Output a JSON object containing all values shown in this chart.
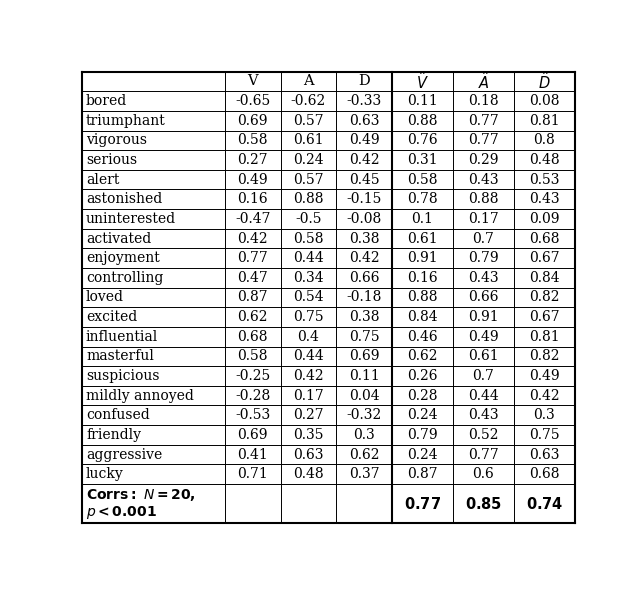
{
  "rows": [
    {
      "label": "bored",
      "values": [
        -0.65,
        -0.62,
        -0.33,
        0.11,
        0.18,
        0.08
      ]
    },
    {
      "label": "triumphant",
      "values": [
        0.69,
        0.57,
        0.63,
        0.88,
        0.77,
        0.81
      ]
    },
    {
      "label": "vigorous",
      "values": [
        0.58,
        0.61,
        0.49,
        0.76,
        0.77,
        0.8
      ]
    },
    {
      "label": "serious",
      "values": [
        0.27,
        0.24,
        0.42,
        0.31,
        0.29,
        0.48
      ]
    },
    {
      "label": "alert",
      "values": [
        0.49,
        0.57,
        0.45,
        0.58,
        0.43,
        0.53
      ]
    },
    {
      "label": "astonished",
      "values": [
        0.16,
        0.88,
        -0.15,
        0.78,
        0.88,
        0.43
      ]
    },
    {
      "label": "uninterested",
      "values": [
        -0.47,
        -0.5,
        -0.08,
        0.1,
        0.17,
        0.09
      ]
    },
    {
      "label": "activated",
      "values": [
        0.42,
        0.58,
        0.38,
        0.61,
        0.7,
        0.68
      ]
    },
    {
      "label": "enjoyment",
      "values": [
        0.77,
        0.44,
        0.42,
        0.91,
        0.79,
        0.67
      ]
    },
    {
      "label": "controlling",
      "values": [
        0.47,
        0.34,
        0.66,
        0.16,
        0.43,
        0.84
      ]
    },
    {
      "label": "loved",
      "values": [
        0.87,
        0.54,
        -0.18,
        0.88,
        0.66,
        0.82
      ]
    },
    {
      "label": "excited",
      "values": [
        0.62,
        0.75,
        0.38,
        0.84,
        0.91,
        0.67
      ]
    },
    {
      "label": "influential",
      "values": [
        0.68,
        0.4,
        0.75,
        0.46,
        0.49,
        0.81
      ]
    },
    {
      "label": "masterful",
      "values": [
        0.58,
        0.44,
        0.69,
        0.62,
        0.61,
        0.82
      ]
    },
    {
      "label": "suspicious",
      "values": [
        -0.25,
        0.42,
        0.11,
        0.26,
        0.7,
        0.49
      ]
    },
    {
      "label": "mildly annoyed",
      "values": [
        -0.28,
        0.17,
        0.04,
        0.28,
        0.44,
        0.42
      ]
    },
    {
      "label": "confused",
      "values": [
        -0.53,
        0.27,
        -0.32,
        0.24,
        0.43,
        0.3
      ]
    },
    {
      "label": "friendly",
      "values": [
        0.69,
        0.35,
        0.3,
        0.79,
        0.52,
        0.75
      ]
    },
    {
      "label": "aggressive",
      "values": [
        0.41,
        0.63,
        0.62,
        0.24,
        0.77,
        0.63
      ]
    },
    {
      "label": "lucky",
      "values": [
        0.71,
        0.48,
        0.37,
        0.87,
        0.6,
        0.68
      ]
    }
  ],
  "corr_values": [
    "0.77",
    "0.85",
    "0.74"
  ],
  "background_color": "#ffffff",
  "text_color": "#000000",
  "font_size": 10.0,
  "header_font_size": 10.5
}
